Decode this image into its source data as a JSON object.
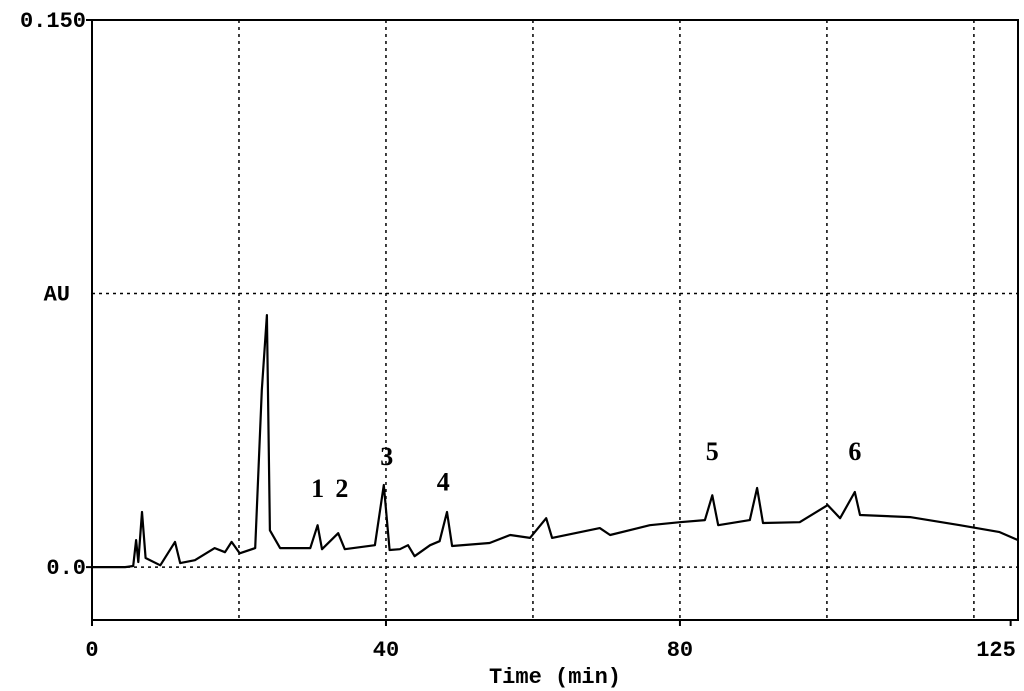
{
  "chart_data": {
    "type": "line",
    "x_label": "Time (min)",
    "y_label": "AU",
    "y_label_value": 0.075,
    "xlim": [
      0,
      126
    ],
    "ylim": [
      -0.0145,
      0.15
    ],
    "xticks": [
      0,
      40,
      80,
      125
    ],
    "yticks": [
      {
        "value": 0,
        "label": "0.0"
      },
      {
        "value": 0.15,
        "label": "0.150"
      }
    ],
    "xgrid": [
      20,
      40,
      60,
      80,
      100,
      120
    ],
    "ygrid": [
      0,
      0.075
    ],
    "grid": true,
    "color": "#000000",
    "x": [
      0,
      4.5,
      5.6,
      6.0,
      6.3,
      6.8,
      7.3,
      9.3,
      11.3,
      12.0,
      14.0,
      16.7,
      18.1,
      19.0,
      20.1,
      22.2,
      23.1,
      23.8,
      24.2,
      25.6,
      29.7,
      30.7,
      31.3,
      33.5,
      34.4,
      38.5,
      39.7,
      40.5,
      41.9,
      43.0,
      43.9,
      46.0,
      47.3,
      48.3,
      49.0,
      54.1,
      56.9,
      59.6,
      61.8,
      62.6,
      69.1,
      70.5,
      75.9,
      80.0,
      83.4,
      84.4,
      85.2,
      89.5,
      90.5,
      91.3,
      96.3,
      100.1,
      101.8,
      103.8,
      104.5,
      111.3,
      118.1,
      123.5,
      126.0
    ],
    "values": [
      0,
      0,
      0.0003,
      0.0074,
      0.0014,
      0.0151,
      0.0025,
      0.0005,
      0.0069,
      0.0011,
      0.0019,
      0.0052,
      0.0041,
      0.0069,
      0.0038,
      0.0052,
      0.0485,
      0.0691,
      0.0101,
      0.0052,
      0.0052,
      0.0115,
      0.0049,
      0.0093,
      0.0049,
      0.006,
      0.0225,
      0.0047,
      0.0049,
      0.006,
      0.003,
      0.006,
      0.0071,
      0.0151,
      0.0058,
      0.0066,
      0.0088,
      0.008,
      0.0134,
      0.008,
      0.0107,
      0.0088,
      0.0115,
      0.0123,
      0.0129,
      0.0197,
      0.0115,
      0.0129,
      0.0217,
      0.0121,
      0.0123,
      0.017,
      0.0134,
      0.0206,
      0.0143,
      0.0137,
      0.0115,
      0.0096,
      0.0074
    ],
    "annotations": [
      {
        "text": "1",
        "x": 30.7,
        "y": 0.0192
      },
      {
        "text": "2",
        "x": 34.0,
        "y": 0.0192
      },
      {
        "text": "3",
        "x": 40.1,
        "y": 0.028
      },
      {
        "text": "4",
        "x": 47.8,
        "y": 0.021
      },
      {
        "text": "5",
        "x": 84.4,
        "y": 0.0293
      },
      {
        "text": "6",
        "x": 103.8,
        "y": 0.0293
      }
    ]
  }
}
